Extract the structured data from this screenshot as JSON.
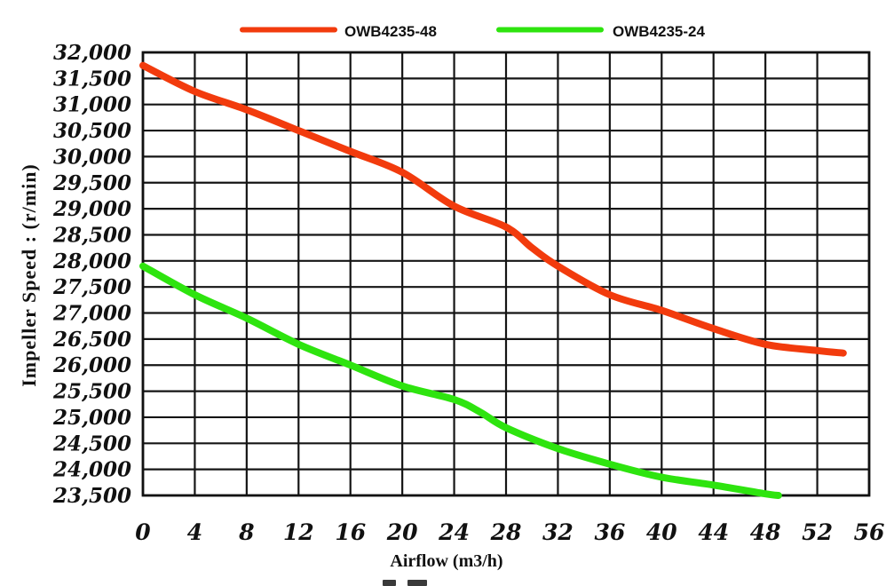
{
  "chart_data": {
    "type": "line",
    "title": "",
    "xlabel": "Airflow (m3/h)",
    "ylabel": "Impeller Speed : (r/min)",
    "xlim": [
      0,
      56
    ],
    "ylim": [
      23500,
      32000
    ],
    "xtick_step": 4,
    "ytick_step": 500,
    "grid": true,
    "legend_position": "top-center",
    "series": [
      {
        "name": "OWB4235-48",
        "color": "#f23b0d",
        "points": [
          [
            0,
            31750
          ],
          [
            4,
            31250
          ],
          [
            8,
            30900
          ],
          [
            12,
            30500
          ],
          [
            16,
            30100
          ],
          [
            20,
            29700
          ],
          [
            24,
            29050
          ],
          [
            28,
            28650
          ],
          [
            30,
            28250
          ],
          [
            32,
            27900
          ],
          [
            36,
            27350
          ],
          [
            40,
            27050
          ],
          [
            44,
            26700
          ],
          [
            48,
            26400
          ],
          [
            52,
            26280
          ],
          [
            54,
            26230
          ]
        ]
      },
      {
        "name": "OWB4235-24",
        "color": "#2ee40f",
        "points": [
          [
            0,
            27900
          ],
          [
            4,
            27350
          ],
          [
            8,
            26900
          ],
          [
            12,
            26400
          ],
          [
            16,
            26000
          ],
          [
            20,
            25600
          ],
          [
            24,
            25340
          ],
          [
            26,
            25100
          ],
          [
            28,
            24800
          ],
          [
            32,
            24400
          ],
          [
            36,
            24100
          ],
          [
            40,
            23850
          ],
          [
            44,
            23700
          ],
          [
            48,
            23530
          ],
          [
            49,
            23500
          ]
        ]
      }
    ]
  }
}
